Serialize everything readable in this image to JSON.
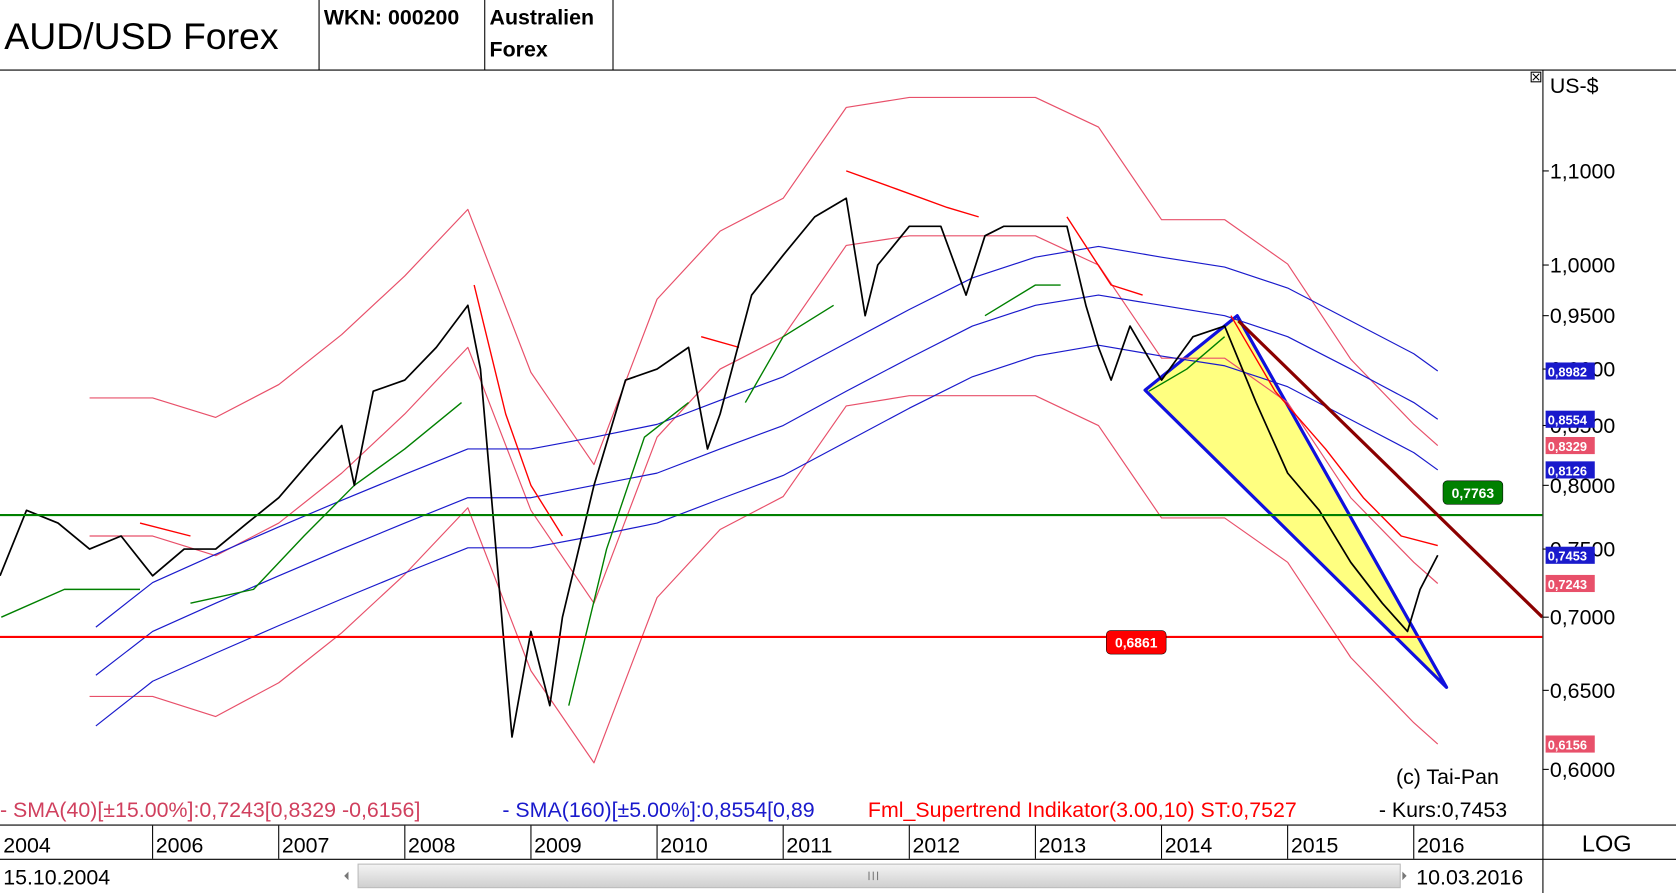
{
  "header": {
    "title": "AUD/USD Forex",
    "wkn": "WKN: 000200",
    "name_lines": [
      "Australien",
      "Forex"
    ]
  },
  "chart_data": {
    "type": "line",
    "y_scale": "log",
    "unit": "US-$",
    "scale_label": "LOG",
    "copyright": "(c) Tai-Pan",
    "xlim": [
      2004.79,
      2017.02
    ],
    "xticks": [
      2004,
      2006,
      2007,
      2008,
      2009,
      2010,
      2011,
      2012,
      2013,
      2014,
      2015,
      2016
    ],
    "ylim": [
      0.568,
      1.219
    ],
    "yticks": [
      {
        "value": 0.6,
        "label": "0,6000"
      },
      {
        "value": 0.65,
        "label": "0,6500"
      },
      {
        "value": 0.7,
        "label": "0,7000"
      },
      {
        "value": 0.75,
        "label": "0,7500"
      },
      {
        "value": 0.8,
        "label": "0,8000"
      },
      {
        "value": 0.85,
        "label": "0,8500"
      },
      {
        "value": 0.9,
        "label": "0,9000"
      },
      {
        "value": 0.95,
        "label": "0,9500"
      },
      {
        "value": 1.0,
        "label": "1,0000"
      },
      {
        "value": 1.1,
        "label": "1,1000"
      }
    ],
    "legend": [
      {
        "text": "- SMA(40)[±15.00%]:0,7243[0,8329 -0,6156]",
        "color": "#d0405e"
      },
      {
        "text": "- SMA(160)[±5.00%]:0,8554[0,89",
        "color": "#1a1acc"
      },
      {
        "text": "Fml_Supertrend Indikator(3.00,10) ST:0,7527",
        "color": "#ff0000"
      },
      {
        "text": "- Kurs:0,7453",
        "color": "#000000"
      }
    ],
    "series": [
      {
        "color": "#e8506a",
        "end_label": "0,8329",
        "x": [
          2005.5,
          2006,
          2006.5,
          2007,
          2007.5,
          2008,
          2008.5,
          2009,
          2009.5,
          2010,
          2010.5,
          2011,
          2011.5,
          2012,
          2012.5,
          2013,
          2013.5,
          2014,
          2014.5,
          2015,
          2015.5,
          2016,
          2016.19
        ],
        "values": [
          0.874,
          0.874,
          0.857,
          0.886,
          0.932,
          0.989,
          1.058,
          0.897,
          0.817,
          0.966,
          1.035,
          1.07,
          1.173,
          1.185,
          1.185,
          1.185,
          1.15,
          1.047,
          1.047,
          1.001,
          0.909,
          0.851,
          0.8329
        ]
      },
      {
        "color": "#e8506a",
        "end_label": "0,7243",
        "x": [
          2005.5,
          2006,
          2006.5,
          2007,
          2007.5,
          2008,
          2008.5,
          2009,
          2009.5,
          2010,
          2010.5,
          2011,
          2011.5,
          2012,
          2012.5,
          2013,
          2013.5,
          2014,
          2014.5,
          2015,
          2015.5,
          2016,
          2016.19
        ],
        "values": [
          0.76,
          0.76,
          0.745,
          0.77,
          0.81,
          0.86,
          0.92,
          0.78,
          0.71,
          0.84,
          0.9,
          0.93,
          1.02,
          1.03,
          1.03,
          1.03,
          1.0,
          0.91,
          0.91,
          0.87,
          0.79,
          0.74,
          0.7243
        ]
      },
      {
        "color": "#e8506a",
        "end_label": "0,6156",
        "x": [
          2005.5,
          2006,
          2006.5,
          2007,
          2007.5,
          2008,
          2008.5,
          2009,
          2009.5,
          2010,
          2010.5,
          2011,
          2011.5,
          2012,
          2012.5,
          2013,
          2013.5,
          2014,
          2014.5,
          2015,
          2015.5,
          2016,
          2016.19
        ],
        "values": [
          0.646,
          0.646,
          0.633,
          0.655,
          0.689,
          0.731,
          0.782,
          0.663,
          0.604,
          0.714,
          0.765,
          0.791,
          0.867,
          0.876,
          0.876,
          0.876,
          0.85,
          0.774,
          0.774,
          0.74,
          0.672,
          0.629,
          0.6156
        ]
      },
      {
        "color": "#1a1acc",
        "end_label": "0,8982",
        "x": [
          2005.55,
          2006,
          2006.5,
          2007,
          2007.5,
          2008,
          2008.5,
          2009,
          2009.5,
          2010,
          2010.5,
          2011,
          2011.5,
          2012,
          2012.5,
          2013,
          2013.5,
          2014,
          2014.5,
          2015,
          2015.5,
          2016,
          2016.19
        ],
        "values": [
          0.693,
          0.725,
          0.746,
          0.767,
          0.788,
          0.809,
          0.83,
          0.83,
          0.84,
          0.851,
          0.872,
          0.893,
          0.924,
          0.956,
          0.987,
          1.008,
          1.019,
          1.008,
          0.998,
          0.977,
          0.945,
          0.914,
          0.8982
        ]
      },
      {
        "color": "#1a1acc",
        "end_label": "0,8554",
        "x": [
          2005.55,
          2006,
          2006.5,
          2007,
          2007.5,
          2008,
          2008.5,
          2009,
          2009.5,
          2010,
          2010.5,
          2011,
          2011.5,
          2012,
          2012.5,
          2013,
          2013.5,
          2014,
          2014.5,
          2015,
          2015.5,
          2016,
          2016.19
        ],
        "values": [
          0.66,
          0.69,
          0.71,
          0.73,
          0.75,
          0.77,
          0.79,
          0.79,
          0.8,
          0.81,
          0.83,
          0.85,
          0.88,
          0.91,
          0.94,
          0.96,
          0.97,
          0.96,
          0.95,
          0.93,
          0.9,
          0.87,
          0.8554
        ]
      },
      {
        "color": "#1a1acc",
        "end_label": "0,8126",
        "x": [
          2005.55,
          2006,
          2006.5,
          2007,
          2007.5,
          2008,
          2008.5,
          2009,
          2009.5,
          2010,
          2010.5,
          2011,
          2011.5,
          2012,
          2012.5,
          2013,
          2013.5,
          2014,
          2014.5,
          2015,
          2015.5,
          2016,
          2016.19
        ],
        "values": [
          0.627,
          0.656,
          0.675,
          0.694,
          0.713,
          0.732,
          0.751,
          0.751,
          0.76,
          0.77,
          0.789,
          0.808,
          0.836,
          0.865,
          0.893,
          0.912,
          0.922,
          0.912,
          0.903,
          0.884,
          0.855,
          0.827,
          0.8126
        ]
      },
      {
        "color": "#008000",
        "x": [
          2004.8,
          2005.3,
          2005.9,
          2006.0,
          2006.3,
          2006.8,
          2007.2,
          2007.6,
          2008.0,
          2008.45,
          2008.6,
          2009.3,
          2009.6,
          2009.9,
          2010.25,
          2010.35,
          2010.7,
          2011.0,
          2011.4,
          2011.6,
          2012.6,
          2013.0,
          2013.2,
          2013.3,
          2013.9,
          2014.2,
          2014.5
        ],
        "values": [
          0.7,
          0.72,
          0.72,
          null,
          0.71,
          0.72,
          0.76,
          0.8,
          0.83,
          0.87,
          null,
          0.64,
          0.75,
          0.84,
          0.87,
          null,
          0.87,
          0.93,
          0.96,
          null,
          0.95,
          0.98,
          0.98,
          null,
          0.88,
          0.9,
          0.93
        ]
      },
      {
        "color": "#ff0000",
        "x": [
          2005.9,
          2006.3,
          2006.35,
          2008.55,
          2008.8,
          2009.0,
          2009.25,
          2009.3,
          2010.35,
          2010.65,
          2010.7,
          2011.5,
          2011.9,
          2012.3,
          2012.55,
          2012.6,
          2013.25,
          2013.6,
          2013.85,
          2013.9,
          2014.55,
          2014.9,
          2015.3,
          2015.6,
          2015.9,
          2016.19
        ],
        "values": [
          0.77,
          0.76,
          null,
          0.98,
          0.86,
          0.8,
          0.76,
          null,
          0.93,
          0.92,
          null,
          1.1,
          1.08,
          1.06,
          1.05,
          null,
          1.05,
          0.98,
          0.97,
          null,
          0.95,
          0.88,
          0.83,
          0.79,
          0.76,
          0.7527
        ]
      },
      {
        "color": "#000000",
        "label_color": "#1a1acc",
        "end_label": "0,7453",
        "x": [
          2004.79,
          2005.0,
          2005.25,
          2005.5,
          2005.75,
          2006.0,
          2006.25,
          2006.5,
          2006.75,
          2007.0,
          2007.25,
          2007.5,
          2007.6,
          2007.75,
          2008.0,
          2008.25,
          2008.5,
          2008.6,
          2008.75,
          2008.85,
          2009.0,
          2009.15,
          2009.25,
          2009.5,
          2009.75,
          2010.0,
          2010.25,
          2010.4,
          2010.5,
          2010.75,
          2011.0,
          2011.25,
          2011.5,
          2011.65,
          2011.75,
          2012.0,
          2012.25,
          2012.45,
          2012.6,
          2012.75,
          2013.0,
          2013.25,
          2013.4,
          2013.5,
          2013.6,
          2013.75,
          2014.0,
          2014.25,
          2014.5,
          2014.75,
          2015.0,
          2015.25,
          2015.5,
          2015.75,
          2015.95,
          2016.05,
          2016.19
        ],
        "values": [
          0.73,
          0.78,
          0.77,
          0.75,
          0.76,
          0.73,
          0.75,
          0.75,
          0.77,
          0.79,
          0.82,
          0.85,
          0.8,
          0.88,
          0.89,
          0.92,
          0.96,
          0.9,
          0.72,
          0.62,
          0.69,
          0.64,
          0.7,
          0.8,
          0.89,
          0.9,
          0.92,
          0.83,
          0.86,
          0.97,
          1.01,
          1.05,
          1.07,
          0.95,
          1.0,
          1.04,
          1.04,
          0.97,
          1.03,
          1.04,
          1.04,
          1.04,
          0.96,
          0.92,
          0.89,
          0.94,
          0.89,
          0.93,
          0.94,
          0.87,
          0.81,
          0.78,
          0.74,
          0.71,
          0.69,
          0.72,
          0.7453
        ]
      }
    ],
    "hlines": [
      {
        "value": 0.7763,
        "label": "0,7763",
        "color": "#008000"
      },
      {
        "value": 0.6861,
        "label": "0,6861",
        "color": "#ff0000"
      }
    ],
    "trendline": {
      "x": [
        2014.61,
        2017.02
      ],
      "values": [
        0.945,
        0.7
      ],
      "color": "#8b0000"
    },
    "channel": {
      "x": [
        2013.87,
        2014.6,
        2016.26
      ],
      "values": [
        0.881,
        0.95,
        0.652
      ],
      "fill": "#ffff80",
      "color": "#1010dd"
    }
  },
  "footer": {
    "start_date": "15.10.2004",
    "end_date": "10.03.2016"
  }
}
